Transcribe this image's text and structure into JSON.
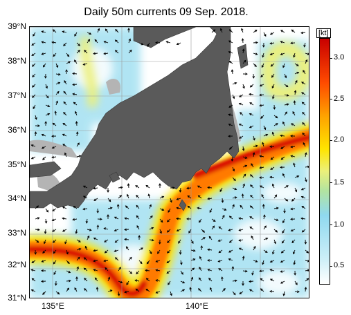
{
  "title": "Daily 50m currents 09 Sep. 2018.",
  "latitude_labels": [
    "39°N",
    "38°N",
    "37°N",
    "36°N",
    "35°N",
    "34°N",
    "33°N",
    "32°N",
    "31°N"
  ],
  "longitude_labels": [
    "135°E",
    "140°E"
  ],
  "colorbar": {
    "unit": "[kt]",
    "ticks": [
      "3.0",
      "2.5",
      "2.0",
      "1.5",
      "1.0",
      "0.5"
    ],
    "range": [
      0.25,
      3.25
    ]
  },
  "colors": {
    "land": "#5a5a5a",
    "shelf": "#b4b4b4",
    "weak": "#cdeff8",
    "moderate": "#8fd9ef",
    "strong": "#ffe400",
    "very_strong": "#ff4b00",
    "extreme": "#c80000"
  },
  "legend_icons": {
    "arrows": "current-vector-arrow-icons"
  }
}
